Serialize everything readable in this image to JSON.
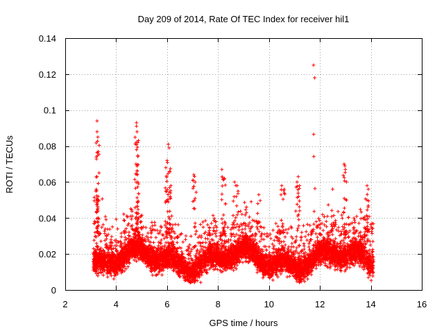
{
  "chart_data": {
    "type": "scatter",
    "title": "Day 209 of 2014, Rate Of TEC Index for receiver hil1",
    "xlabel": "GPS time / hours",
    "ylabel": "ROTI / TECUs",
    "xlim": [
      2,
      16
    ],
    "ylim": [
      0,
      0.14
    ],
    "xticks": [
      "2",
      "4",
      "6",
      "8",
      "10",
      "12",
      "14",
      "16"
    ],
    "yticks": [
      "0",
      "0.02",
      "0.04",
      "0.06",
      "0.08",
      "0.1",
      "0.12",
      "0.14"
    ],
    "grid": true,
    "marker": "+",
    "color": "#ff0000",
    "series": [
      {
        "name": "ROTI",
        "x_range": [
          3.1,
          14.1
        ],
        "typical_band": [
          0.005,
          0.035
        ],
        "peaks": [
          {
            "x": 3.25,
            "y": 0.094
          },
          {
            "x": 3.25,
            "y": 0.088
          },
          {
            "x": 3.28,
            "y": 0.085
          },
          {
            "x": 3.3,
            "y": 0.077
          },
          {
            "x": 3.22,
            "y": 0.074
          },
          {
            "x": 3.25,
            "y": 0.063
          },
          {
            "x": 3.2,
            "y": 0.055
          },
          {
            "x": 3.3,
            "y": 0.052
          },
          {
            "x": 4.8,
            "y": 0.093
          },
          {
            "x": 4.8,
            "y": 0.091
          },
          {
            "x": 4.82,
            "y": 0.088
          },
          {
            "x": 4.85,
            "y": 0.082
          },
          {
            "x": 4.8,
            "y": 0.078
          },
          {
            "x": 4.78,
            "y": 0.07
          },
          {
            "x": 4.85,
            "y": 0.06
          },
          {
            "x": 4.88,
            "y": 0.059
          },
          {
            "x": 6.05,
            "y": 0.081
          },
          {
            "x": 6.08,
            "y": 0.079
          },
          {
            "x": 6.0,
            "y": 0.072
          },
          {
            "x": 5.95,
            "y": 0.068
          },
          {
            "x": 6.1,
            "y": 0.066
          },
          {
            "x": 6.15,
            "y": 0.058
          },
          {
            "x": 7.05,
            "y": 0.064
          },
          {
            "x": 7.1,
            "y": 0.06
          },
          {
            "x": 8.15,
            "y": 0.067
          },
          {
            "x": 8.25,
            "y": 0.062
          },
          {
            "x": 8.65,
            "y": 0.06
          },
          {
            "x": 8.75,
            "y": 0.058
          },
          {
            "x": 9.6,
            "y": 0.053
          },
          {
            "x": 10.5,
            "y": 0.058
          },
          {
            "x": 10.6,
            "y": 0.056
          },
          {
            "x": 11.15,
            "y": 0.063
          },
          {
            "x": 11.1,
            "y": 0.06
          },
          {
            "x": 11.2,
            "y": 0.058
          },
          {
            "x": 11.75,
            "y": 0.125
          },
          {
            "x": 12.5,
            "y": 0.056
          },
          {
            "x": 12.95,
            "y": 0.07
          },
          {
            "x": 12.98,
            "y": 0.069
          },
          {
            "x": 13.0,
            "y": 0.067
          },
          {
            "x": 13.85,
            "y": 0.058
          },
          {
            "x": 13.9,
            "y": 0.056
          },
          {
            "x": 13.85,
            "y": 0.05
          },
          {
            "x": 14.05,
            "y": 0.037
          }
        ]
      }
    ]
  }
}
